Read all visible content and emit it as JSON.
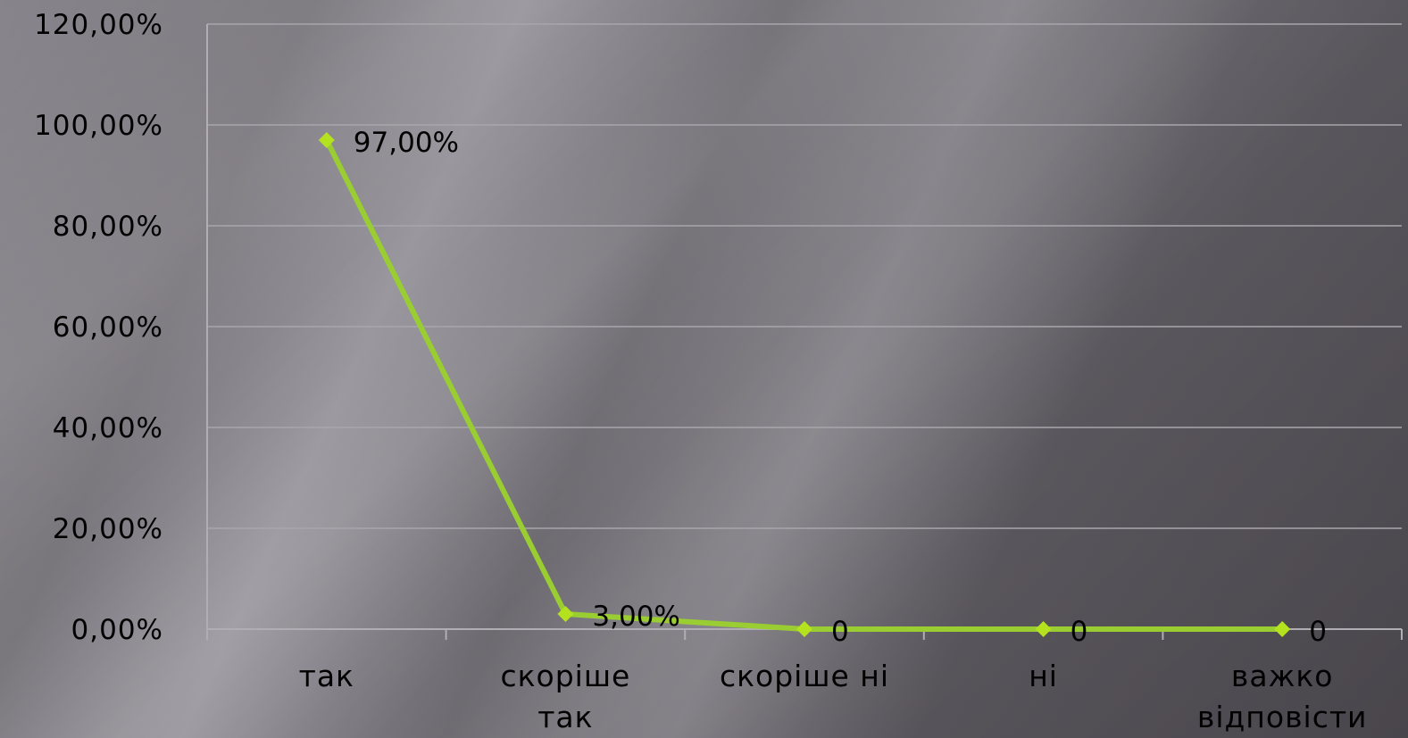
{
  "chart_data": {
    "type": "line",
    "categories": [
      [
        "так"
      ],
      [
        "скоріше",
        "так"
      ],
      [
        "скоріше ні"
      ],
      [
        "ні"
      ],
      [
        "важко",
        "відповісти"
      ]
    ],
    "series": [
      {
        "values": [
          97,
          3,
          0,
          0,
          0
        ]
      }
    ],
    "data_labels": [
      "97,00%",
      "3,00%",
      "0",
      "0",
      "0"
    ],
    "y_ticks": [
      "0,00%",
      "20,00%",
      "40,00%",
      "60,00%",
      "80,00%",
      "100,00%",
      "120,00%"
    ],
    "ylim": [
      0,
      120
    ],
    "grid": true,
    "legend": "none",
    "colors": {
      "line": "#9acd32",
      "marker": "#b4e21f",
      "grid": "#a9a7ad",
      "axis": "#b0aeb4"
    }
  }
}
